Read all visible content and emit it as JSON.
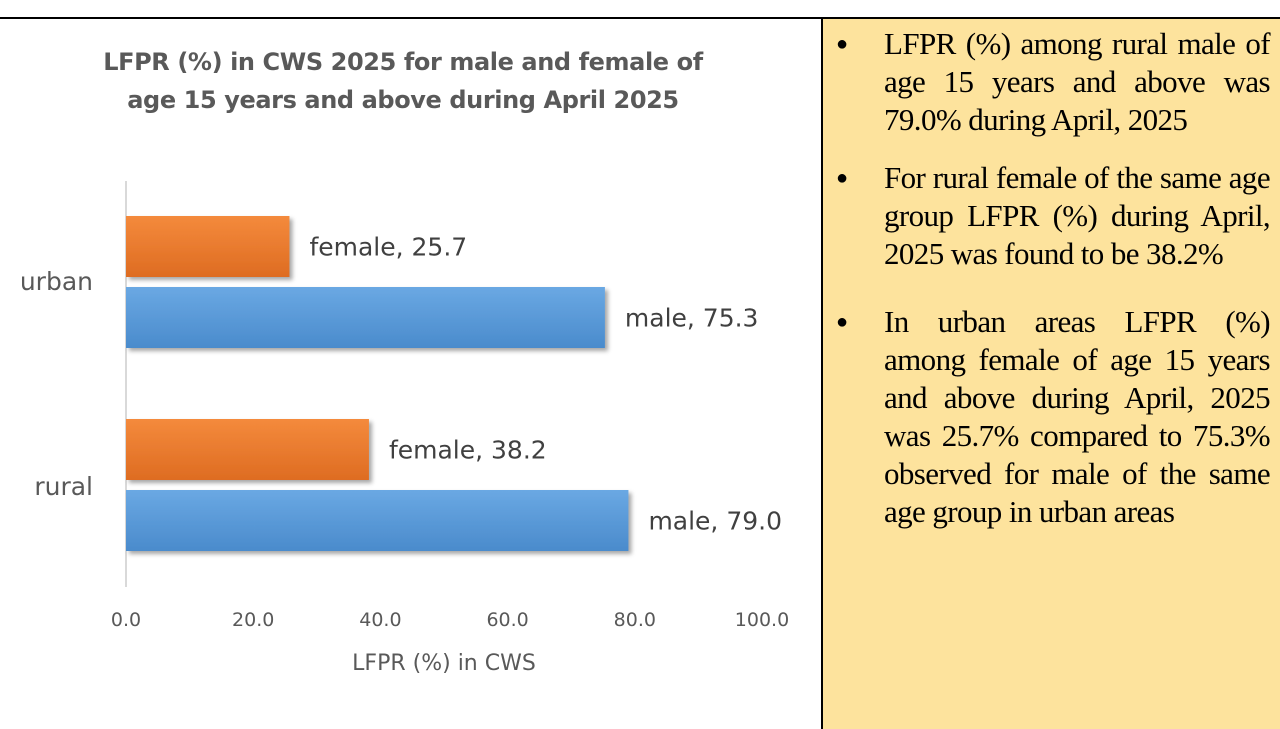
{
  "chart_data": {
    "type": "bar",
    "orientation": "horizontal",
    "title_lines": [
      "LFPR  (%) in CWS 2025 for male and female of",
      "age 15 years and above during April 2025"
    ],
    "xlabel": "LFPR (%) in CWS",
    "xlim": [
      0,
      100
    ],
    "xticks": [
      "0.0",
      "20.0",
      "40.0",
      "60.0",
      "80.0",
      "100.0"
    ],
    "categories": [
      "urban",
      "rural"
    ],
    "series": [
      {
        "key": "female",
        "color": "#ed7d31",
        "values": [
          25.7,
          38.2
        ],
        "labels": [
          "female, 25.7",
          "female, 38.2"
        ]
      },
      {
        "key": "male",
        "color": "#5b9bd5",
        "values": [
          75.3,
          79.0
        ],
        "labels": [
          "male, 75.3",
          "male, 79.0"
        ]
      }
    ],
    "grid": false,
    "legend": "none"
  },
  "bullets": [
    "LFPR (%) among rural male of age 15 years and above was 79.0% during April, 2025",
    "For rural female of the same age group LFPR (%) during April, 2025 was found to be 38.2%",
    "In urban areas LFPR (%) among female of age 15 years and above during April, 2025 was 25.7% compared to 75.3% observed for male of the same age group in urban areas"
  ],
  "colors": {
    "panel_background": "#fde39d",
    "title_text": "#595959",
    "axis_text": "#595959"
  }
}
